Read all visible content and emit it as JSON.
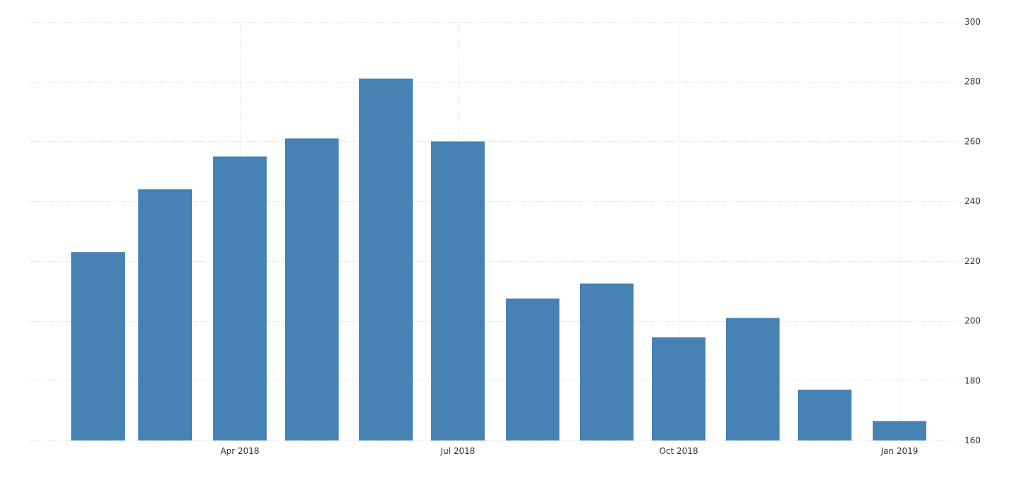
{
  "chart_data": {
    "type": "bar",
    "categories": [
      "2018-02",
      "2018-03",
      "2018-04",
      "2018-05",
      "2018-06",
      "2018-07",
      "2018-08",
      "2018-09",
      "2018-10",
      "2018-11",
      "2018-12",
      "2019-01"
    ],
    "values": [
      223,
      244,
      255,
      261,
      281,
      260,
      207.5,
      212.5,
      194.5,
      201,
      177,
      166.5
    ],
    "ylim": [
      160,
      300
    ],
    "yticks": [
      160,
      180,
      200,
      220,
      240,
      260,
      280,
      300
    ],
    "xticks": [
      {
        "category": "2018-04",
        "label": "Apr 2018"
      },
      {
        "category": "2018-07",
        "label": "Jul 2018"
      },
      {
        "category": "2018-10",
        "label": "Oct 2018"
      },
      {
        "category": "2019-01",
        "label": "Jan 2019"
      }
    ],
    "y_axis_side": "right",
    "grid": true,
    "bar_color": "#4682b4",
    "grid_color": "#d6d6d6"
  }
}
